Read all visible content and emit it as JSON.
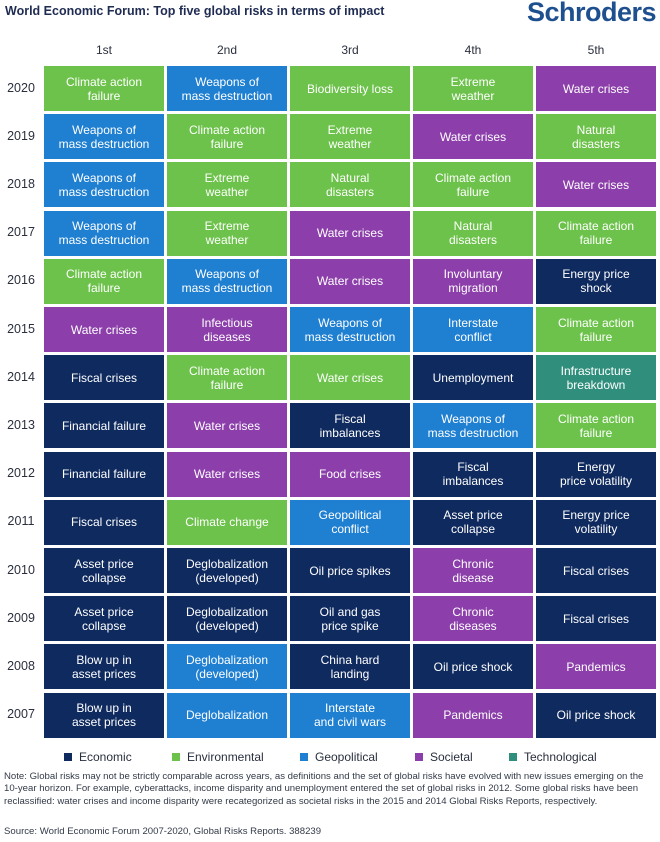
{
  "header": {
    "title": "World Economic Forum: Top five global risks in terms of impact",
    "brand": "Schroders"
  },
  "colors": {
    "Economic": "#0f2a5e",
    "Environmental": "#6cc24a",
    "Geopolitical": "#1f7fd1",
    "Societal": "#8c3faa",
    "Technological": "#2f8e7c"
  },
  "chart_data": {
    "type": "table",
    "columns": [
      "1st",
      "2nd",
      "3rd",
      "4th",
      "5th"
    ],
    "rows": [
      {
        "year": "2020",
        "cells": [
          {
            "text": "Climate action\nfailure",
            "category": "Environmental"
          },
          {
            "text": "Weapons of\nmass destruction",
            "category": "Geopolitical"
          },
          {
            "text": "Biodiversity loss",
            "category": "Environmental"
          },
          {
            "text": "Extreme\nweather",
            "category": "Environmental"
          },
          {
            "text": "Water crises",
            "category": "Societal"
          }
        ]
      },
      {
        "year": "2019",
        "cells": [
          {
            "text": "Weapons of\nmass destruction",
            "category": "Geopolitical"
          },
          {
            "text": "Climate action\nfailure",
            "category": "Environmental"
          },
          {
            "text": "Extreme\nweather",
            "category": "Environmental"
          },
          {
            "text": "Water crises",
            "category": "Societal"
          },
          {
            "text": "Natural\ndisasters",
            "category": "Environmental"
          }
        ]
      },
      {
        "year": "2018",
        "cells": [
          {
            "text": "Weapons of\nmass destruction",
            "category": "Geopolitical"
          },
          {
            "text": "Extreme\nweather",
            "category": "Environmental"
          },
          {
            "text": "Natural\ndisasters",
            "category": "Environmental"
          },
          {
            "text": "Climate action\nfailure",
            "category": "Environmental"
          },
          {
            "text": "Water crises",
            "category": "Societal"
          }
        ]
      },
      {
        "year": "2017",
        "cells": [
          {
            "text": "Weapons of\nmass destruction",
            "category": "Geopolitical"
          },
          {
            "text": "Extreme\nweather",
            "category": "Environmental"
          },
          {
            "text": "Water crises",
            "category": "Societal"
          },
          {
            "text": "Natural\ndisasters",
            "category": "Environmental"
          },
          {
            "text": "Climate action\nfailure",
            "category": "Environmental"
          }
        ]
      },
      {
        "year": "2016",
        "cells": [
          {
            "text": "Climate action\nfailure",
            "category": "Environmental"
          },
          {
            "text": "Weapons of\nmass destruction",
            "category": "Geopolitical"
          },
          {
            "text": "Water crises",
            "category": "Societal"
          },
          {
            "text": "Involuntary\nmigration",
            "category": "Societal"
          },
          {
            "text": "Energy price\nshock",
            "category": "Economic"
          }
        ]
      },
      {
        "year": "2015",
        "cells": [
          {
            "text": "Water crises",
            "category": "Societal"
          },
          {
            "text": "Infectious\ndiseases",
            "category": "Societal"
          },
          {
            "text": "Weapons of\nmass destruction",
            "category": "Geopolitical"
          },
          {
            "text": "Interstate\nconflict",
            "category": "Geopolitical"
          },
          {
            "text": "Climate action\nfailure",
            "category": "Environmental"
          }
        ]
      },
      {
        "year": "2014",
        "cells": [
          {
            "text": "Fiscal crises",
            "category": "Economic"
          },
          {
            "text": "Climate action\nfailure",
            "category": "Environmental"
          },
          {
            "text": "Water crises",
            "category": "Environmental"
          },
          {
            "text": "Unemployment",
            "category": "Economic"
          },
          {
            "text": "Infrastructure\nbreakdown",
            "category": "Technological"
          }
        ]
      },
      {
        "year": "2013",
        "cells": [
          {
            "text": "Financial failure",
            "category": "Economic"
          },
          {
            "text": "Water crises",
            "category": "Societal"
          },
          {
            "text": "Fiscal\nimbalances",
            "category": "Economic"
          },
          {
            "text": "Weapons of\nmass destruction",
            "category": "Geopolitical"
          },
          {
            "text": "Climate action\nfailure",
            "category": "Environmental"
          }
        ]
      },
      {
        "year": "2012",
        "cells": [
          {
            "text": "Financial failure",
            "category": "Economic"
          },
          {
            "text": "Water crises",
            "category": "Societal"
          },
          {
            "text": "Food crises",
            "category": "Societal"
          },
          {
            "text": "Fiscal\nimbalances",
            "category": "Economic"
          },
          {
            "text": "Energy\nprice volatility",
            "category": "Economic"
          }
        ]
      },
      {
        "year": "2011",
        "cells": [
          {
            "text": "Fiscal crises",
            "category": "Economic"
          },
          {
            "text": "Climate change",
            "category": "Environmental"
          },
          {
            "text": "Geopolitical\nconflict",
            "category": "Geopolitical"
          },
          {
            "text": "Asset price\ncollapse",
            "category": "Economic"
          },
          {
            "text": "Energy price\nvolatility",
            "category": "Economic"
          }
        ]
      },
      {
        "year": "2010",
        "cells": [
          {
            "text": "Asset price\ncollapse",
            "category": "Economic"
          },
          {
            "text": "Deglobalization\n(developed)",
            "category": "Economic"
          },
          {
            "text": "Oil price spikes",
            "category": "Economic"
          },
          {
            "text": "Chronic\ndisease",
            "category": "Societal"
          },
          {
            "text": "Fiscal crises",
            "category": "Economic"
          }
        ]
      },
      {
        "year": "2009",
        "cells": [
          {
            "text": "Asset price\ncollapse",
            "category": "Economic"
          },
          {
            "text": "Deglobalization\n(developed)",
            "category": "Economic"
          },
          {
            "text": "Oil and gas\nprice spike",
            "category": "Economic"
          },
          {
            "text": "Chronic\ndiseases",
            "category": "Societal"
          },
          {
            "text": "Fiscal crises",
            "category": "Economic"
          }
        ]
      },
      {
        "year": "2008",
        "cells": [
          {
            "text": "Blow up in\nasset prices",
            "category": "Economic"
          },
          {
            "text": "Deglobalization\n(developed)",
            "category": "Geopolitical"
          },
          {
            "text": "China hard\nlanding",
            "category": "Economic"
          },
          {
            "text": "Oil price shock",
            "category": "Economic"
          },
          {
            "text": "Pandemics",
            "category": "Societal"
          }
        ]
      },
      {
        "year": "2007",
        "cells": [
          {
            "text": "Blow up in\nasset prices",
            "category": "Economic"
          },
          {
            "text": "Deglobalization",
            "category": "Geopolitical"
          },
          {
            "text": "Interstate\nand civil wars",
            "category": "Geopolitical"
          },
          {
            "text": "Pandemics",
            "category": "Societal"
          },
          {
            "text": "Oil price shock",
            "category": "Economic"
          }
        ]
      }
    ],
    "legend": [
      "Economic",
      "Environmental",
      "Geopolitical",
      "Societal",
      "Technological"
    ]
  },
  "footer": {
    "note": "Note: Global risks may not be strictly comparable across years, as definitions and the set of global risks have evolved with new issues emerging on the 10-year horizon. For example, cyberattacks, income disparity and unemployment entered the set of global risks in 2012. Some global risks have been reclassified: water crises and income disparity were recategorized as societal risks in the 2015 and 2014 Global Risks Reports, respectively.",
    "source": "Source: World Economic Forum 2007-2020, Global Risks Reports. 388239"
  }
}
